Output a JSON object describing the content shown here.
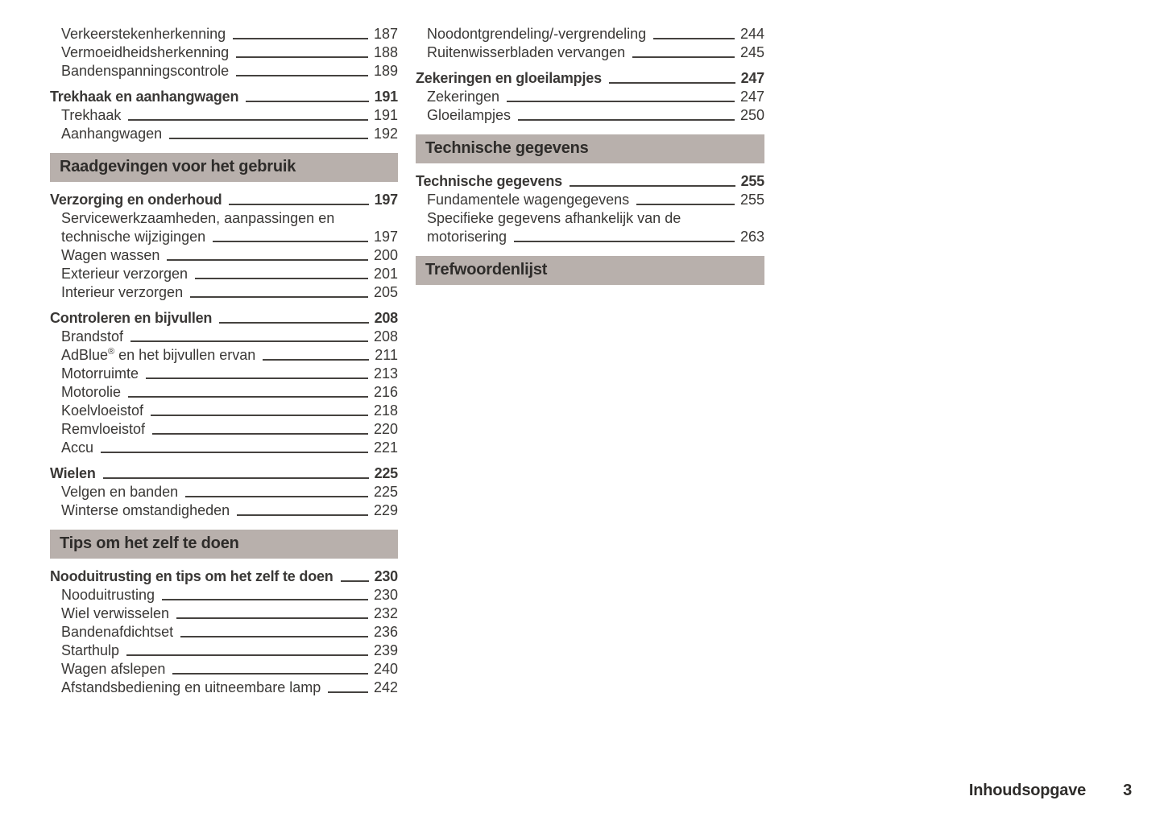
{
  "page": {
    "footer": {
      "label": "Inhoudsopgave",
      "page_number": "3"
    },
    "colors": {
      "page_bg": "#ffffff",
      "text": "#3a3836",
      "section_bar_bg": "#b8b0ac",
      "section_bar_text": "#2e2c2a",
      "leader_line": "#45423f"
    }
  },
  "toc": {
    "columns": [
      {
        "blocks": [
          {
            "type": "entry",
            "level": "sub",
            "lines": [
              "Verkeerstekenherkenning"
            ],
            "page": "187"
          },
          {
            "type": "entry",
            "level": "sub",
            "lines": [
              "Vermoeidheidsherkenning"
            ],
            "page": "188"
          },
          {
            "type": "entry",
            "level": "sub",
            "lines": [
              "Bandenspanningscontrole"
            ],
            "page": "189"
          },
          {
            "type": "entry",
            "level": "main",
            "lines": [
              "Trekhaak en aanhangwagen"
            ],
            "page": "191"
          },
          {
            "type": "entry",
            "level": "sub",
            "lines": [
              "Trekhaak"
            ],
            "page": "191"
          },
          {
            "type": "entry",
            "level": "sub",
            "lines": [
              "Aanhangwagen"
            ],
            "page": "192"
          },
          {
            "type": "section",
            "label": "Raadgevingen voor het gebruik"
          },
          {
            "type": "entry",
            "level": "main",
            "lines": [
              "Verzorging en onderhoud"
            ],
            "page": "197"
          },
          {
            "type": "entry",
            "level": "sub",
            "lines": [
              "Servicewerkzaamheden, aanpassingen en",
              "technische wijzigingen"
            ],
            "page": "197"
          },
          {
            "type": "entry",
            "level": "sub",
            "lines": [
              "Wagen wassen"
            ],
            "page": "200"
          },
          {
            "type": "entry",
            "level": "sub",
            "lines": [
              "Exterieur verzorgen"
            ],
            "page": "201"
          },
          {
            "type": "entry",
            "level": "sub",
            "lines": [
              "Interieur verzorgen"
            ],
            "page": "205"
          },
          {
            "type": "entry",
            "level": "main",
            "lines": [
              "Controleren en bijvullen"
            ],
            "page": "208"
          },
          {
            "type": "entry",
            "level": "sub",
            "lines": [
              "Brandstof"
            ],
            "page": "208"
          },
          {
            "type": "entry",
            "level": "sub",
            "lines": [
              "AdBlue® en het bijvullen ervan"
            ],
            "page": "211"
          },
          {
            "type": "entry",
            "level": "sub",
            "lines": [
              "Motorruimte"
            ],
            "page": "213"
          },
          {
            "type": "entry",
            "level": "sub",
            "lines": [
              "Motorolie"
            ],
            "page": "216"
          },
          {
            "type": "entry",
            "level": "sub",
            "lines": [
              "Koelvloeistof"
            ],
            "page": "218"
          },
          {
            "type": "entry",
            "level": "sub",
            "lines": [
              "Remvloeistof"
            ],
            "page": "220"
          },
          {
            "type": "entry",
            "level": "sub",
            "lines": [
              "Accu"
            ],
            "page": "221"
          },
          {
            "type": "entry",
            "level": "main",
            "lines": [
              "Wielen"
            ],
            "page": "225"
          },
          {
            "type": "entry",
            "level": "sub",
            "lines": [
              "Velgen en banden"
            ],
            "page": "225"
          },
          {
            "type": "entry",
            "level": "sub",
            "lines": [
              "Winterse omstandigheden"
            ],
            "page": "229"
          },
          {
            "type": "section",
            "label": "Tips om het zelf te doen"
          },
          {
            "type": "entry",
            "level": "main",
            "lines": [
              "Nooduitrusting en tips om het zelf te doen"
            ],
            "page": "230"
          },
          {
            "type": "entry",
            "level": "sub",
            "lines": [
              "Nooduitrusting"
            ],
            "page": "230"
          },
          {
            "type": "entry",
            "level": "sub",
            "lines": [
              "Wiel verwisselen"
            ],
            "page": "232"
          },
          {
            "type": "entry",
            "level": "sub",
            "lines": [
              "Bandenafdichtset"
            ],
            "page": "236"
          },
          {
            "type": "entry",
            "level": "sub",
            "lines": [
              "Starthulp"
            ],
            "page": "239"
          },
          {
            "type": "entry",
            "level": "sub",
            "lines": [
              "Wagen afslepen"
            ],
            "page": "240"
          },
          {
            "type": "entry",
            "level": "sub",
            "lines": [
              "Afstandsbediening en uitneembare lamp"
            ],
            "page": "242"
          }
        ]
      },
      {
        "blocks": [
          {
            "type": "entry",
            "level": "sub",
            "lines": [
              "Noodontgrendeling/-vergrendeling"
            ],
            "page": "244"
          },
          {
            "type": "entry",
            "level": "sub",
            "lines": [
              "Ruitenwisserbladen vervangen"
            ],
            "page": "245"
          },
          {
            "type": "entry",
            "level": "main",
            "lines": [
              "Zekeringen en gloeilampjes"
            ],
            "page": "247"
          },
          {
            "type": "entry",
            "level": "sub",
            "lines": [
              "Zekeringen"
            ],
            "page": "247"
          },
          {
            "type": "entry",
            "level": "sub",
            "lines": [
              "Gloeilampjes"
            ],
            "page": "250"
          },
          {
            "type": "section",
            "label": "Technische gegevens"
          },
          {
            "type": "entry",
            "level": "main",
            "lines": [
              "Technische gegevens"
            ],
            "page": "255"
          },
          {
            "type": "entry",
            "level": "sub",
            "lines": [
              "Fundamentele wagengegevens"
            ],
            "page": "255"
          },
          {
            "type": "entry",
            "level": "sub",
            "lines": [
              "Specifieke gegevens afhankelijk van de",
              "motorisering"
            ],
            "page": "263"
          },
          {
            "type": "section",
            "label": "Trefwoordenlijst"
          }
        ]
      }
    ]
  }
}
